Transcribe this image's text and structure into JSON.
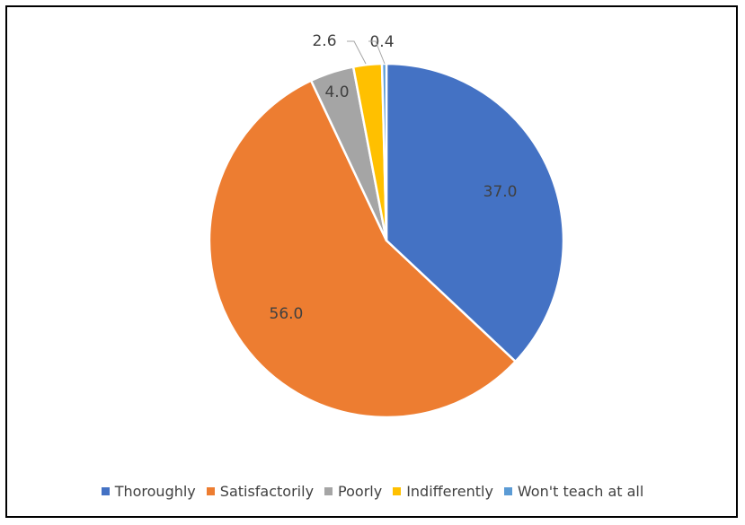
{
  "chart_data": {
    "type": "pie",
    "categories": [
      "Thoroughly",
      "Satisfactorily",
      "Poorly",
      "Indifferently",
      "Won't teach at all"
    ],
    "values": [
      37.0,
      56.0,
      4.0,
      2.6,
      0.4
    ],
    "labels": [
      "37.0",
      "56.0",
      "4.0",
      "2.6",
      "0.4"
    ],
    "colors": [
      "#4472C4",
      "#ED7D31",
      "#A5A5A5",
      "#FFC000",
      "#5B9BD5"
    ],
    "title": "",
    "legend_position": "bottom",
    "start_angle_deg": 0,
    "direction": "clockwise"
  }
}
